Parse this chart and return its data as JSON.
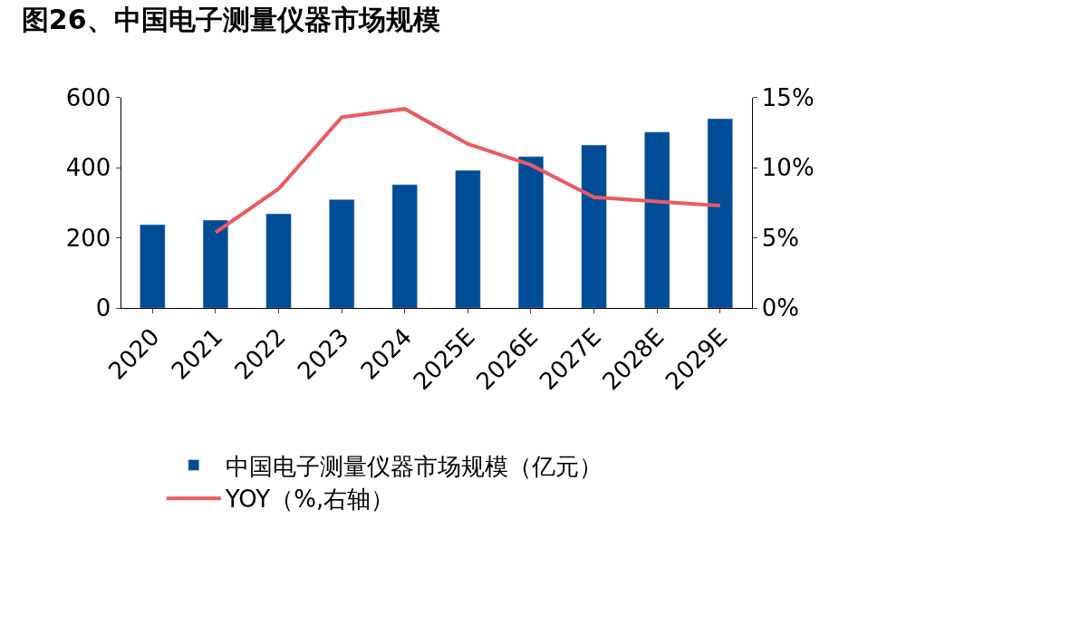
{
  "chart_data": {
    "type": "bar",
    "title": "图26、中国电子测量仪器市场规模",
    "categories": [
      "2020",
      "2021",
      "2022",
      "2023",
      "2024",
      "2025E",
      "2026E",
      "2027E",
      "2028E",
      "2029E"
    ],
    "series": [
      {
        "name": "中国电子测量仪器市场规模（亿元）",
        "color": "#004c97",
        "values": [
          238,
          251,
          269,
          310,
          352,
          393,
          432,
          465,
          502,
          540
        ]
      },
      {
        "name": "YOY（%,右轴）",
        "type": "line",
        "axis": "y2",
        "color": "#eb5a5f",
        "values": [
          null,
          5.4,
          8.5,
          13.6,
          14.2,
          11.7,
          10.2,
          7.9,
          7.6,
          7.3
        ]
      }
    ],
    "ylim": [
      0,
      600
    ],
    "yticks": [
      0,
      200,
      400,
      600
    ],
    "y2lim": [
      0,
      15
    ],
    "y2ticks": [
      {
        "value": 0,
        "label": "0%"
      },
      {
        "value": 5,
        "label": "5%"
      },
      {
        "value": 10,
        "label": "10%"
      },
      {
        "value": 15,
        "label": "15%"
      }
    ],
    "legend": "bottom",
    "marker": "none",
    "line_style": "solid"
  }
}
